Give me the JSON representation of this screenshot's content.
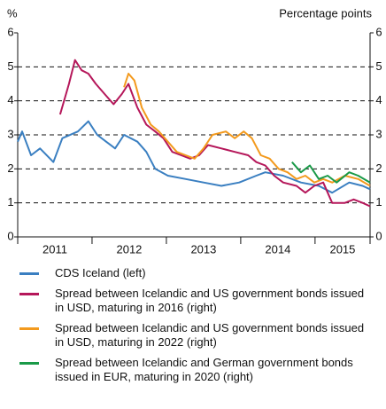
{
  "chart_data": {
    "type": "line",
    "ylabel": "%",
    "y2label": "Percentage points",
    "xlim": [
      2011,
      2015.74
    ],
    "xticks": [
      {
        "value": 2011,
        "label": "2011"
      },
      {
        "value": 2012,
        "label": "2012"
      },
      {
        "value": 2013,
        "label": "2013"
      },
      {
        "value": 2014,
        "label": "2014"
      },
      {
        "value": 2015,
        "label": "2015"
      }
    ],
    "ylim": [
      0,
      6
    ],
    "yticks": [
      0,
      1,
      2,
      3,
      4,
      5,
      6
    ],
    "y2lim": [
      0,
      6
    ],
    "y2ticks": [
      0,
      1,
      2,
      3,
      4,
      5,
      6
    ],
    "grid": true,
    "series": [
      {
        "name": "CDS Iceland (left)",
        "color": "#3a7fc1",
        "x": [
          2011.0,
          2011.06,
          2011.18,
          2011.3,
          2011.48,
          2011.6,
          2011.81,
          2011.95,
          2012.07,
          2012.19,
          2012.31,
          2012.43,
          2012.61,
          2012.73,
          2012.85,
          2013.02,
          2013.26,
          2013.5,
          2013.74,
          2013.98,
          2014.21,
          2014.33,
          2014.57,
          2014.81,
          2015.05,
          2015.23,
          2015.46,
          2015.64,
          2015.74
        ],
        "values": [
          2.8,
          3.1,
          2.4,
          2.6,
          2.2,
          2.9,
          3.1,
          3.4,
          3.0,
          2.8,
          2.6,
          3.0,
          2.8,
          2.5,
          2.0,
          1.8,
          1.7,
          1.6,
          1.5,
          1.6,
          1.8,
          1.9,
          1.8,
          1.6,
          1.5,
          1.3,
          1.6,
          1.5,
          1.4
        ]
      },
      {
        "name": "Spread between Icelandic and US government bonds issued in USD, maturing in 2016 (right)",
        "color": "#b5175a",
        "axis": "y2",
        "x": [
          2011.57,
          2011.69,
          2011.77,
          2011.86,
          2011.95,
          2012.05,
          2012.17,
          2012.29,
          2012.4,
          2012.49,
          2012.61,
          2012.73,
          2012.85,
          2012.96,
          2013.08,
          2013.2,
          2013.32,
          2013.44,
          2013.56,
          2013.74,
          2013.92,
          2014.1,
          2014.21,
          2014.33,
          2014.45,
          2014.57,
          2014.75,
          2014.87,
          2014.99,
          2015.11,
          2015.23,
          2015.4,
          2015.52,
          2015.64,
          2015.74
        ],
        "values": [
          3.6,
          4.5,
          5.2,
          4.9,
          4.8,
          4.5,
          4.2,
          3.9,
          4.2,
          4.5,
          3.8,
          3.3,
          3.1,
          2.9,
          2.5,
          2.4,
          2.3,
          2.4,
          2.7,
          2.6,
          2.5,
          2.4,
          2.2,
          2.1,
          1.8,
          1.6,
          1.5,
          1.3,
          1.5,
          1.6,
          1.0,
          1.0,
          1.1,
          1.0,
          0.9
        ]
      },
      {
        "name": "Spread between Icelandic and US government bonds issued in USD, maturing in 2022 (right)",
        "color": "#f39a1e",
        "axis": "y2",
        "x": [
          2012.43,
          2012.49,
          2012.57,
          2012.67,
          2012.79,
          2012.9,
          2013.02,
          2013.14,
          2013.26,
          2013.38,
          2013.5,
          2013.62,
          2013.8,
          2013.92,
          2014.04,
          2014.15,
          2014.27,
          2014.39,
          2014.51,
          2014.63,
          2014.75,
          2014.87,
          2014.99,
          2015.11,
          2015.23,
          2015.4,
          2015.58,
          2015.74
        ],
        "values": [
          4.4,
          4.8,
          4.6,
          3.8,
          3.3,
          3.1,
          2.8,
          2.5,
          2.4,
          2.3,
          2.6,
          3.0,
          3.1,
          2.9,
          3.1,
          2.9,
          2.4,
          2.3,
          2.0,
          1.9,
          1.7,
          1.8,
          1.6,
          1.7,
          1.6,
          1.8,
          1.7,
          1.5
        ]
      },
      {
        "name": "Spread between Icelandic and German government bonds issued in EUR, maturing in 2020 (right)",
        "color": "#1a9a48",
        "axis": "y2",
        "x": [
          2014.69,
          2014.81,
          2014.93,
          2015.05,
          2015.17,
          2015.29,
          2015.46,
          2015.58,
          2015.74
        ],
        "values": [
          2.2,
          1.9,
          2.1,
          1.7,
          1.8,
          1.6,
          1.9,
          1.8,
          1.6
        ]
      }
    ]
  }
}
